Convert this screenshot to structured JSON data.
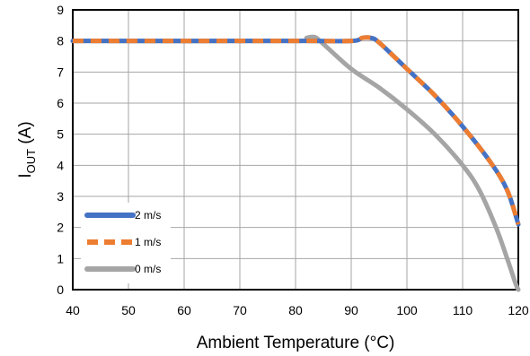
{
  "chart_data": {
    "type": "line",
    "xlabel": "Ambient Temperature (°C)",
    "ylabel_main": "I",
    "ylabel_sub": "OUT",
    "ylabel_suffix": " (A)",
    "xlim": [
      40,
      120
    ],
    "ylim": [
      0,
      9
    ],
    "xticks": [
      "40",
      "50",
      "60",
      "70",
      "80",
      "90",
      "100",
      "110",
      "120"
    ],
    "yticks": [
      "0",
      "1",
      "2",
      "3",
      "4",
      "5",
      "6",
      "7",
      "8",
      "9"
    ],
    "grid": true,
    "legend_position": "bottom-left",
    "series": [
      {
        "name": "2 m/s",
        "color": "#4472C4",
        "dash": "solid",
        "points": [
          [
            40,
            8
          ],
          [
            80,
            8
          ],
          [
            90,
            8
          ],
          [
            92,
            8.1
          ],
          [
            93.5,
            8.1
          ],
          [
            95,
            7.95
          ],
          [
            100,
            7.1
          ],
          [
            105,
            6.25
          ],
          [
            110,
            5.25
          ],
          [
            115,
            4.1
          ],
          [
            118,
            3.2
          ],
          [
            120,
            2.1
          ]
        ]
      },
      {
        "name": "1 m/s",
        "color": "#ED7D31",
        "dash": "dashed",
        "points": [
          [
            40,
            8
          ],
          [
            80,
            8
          ],
          [
            90,
            8
          ],
          [
            92,
            8.1
          ],
          [
            93.5,
            8.1
          ],
          [
            95,
            7.95
          ],
          [
            100,
            7.1
          ],
          [
            105,
            6.25
          ],
          [
            110,
            5.25
          ],
          [
            115,
            4.1
          ],
          [
            118,
            3.2
          ],
          [
            120,
            2.1
          ]
        ]
      },
      {
        "name": "0 m/s",
        "color": "#A5A5A5",
        "dash": "solid",
        "points": [
          [
            40,
            8
          ],
          [
            80,
            8
          ],
          [
            82,
            8.1
          ],
          [
            83.5,
            8.12
          ],
          [
            85,
            7.9
          ],
          [
            90,
            7.1
          ],
          [
            95,
            6.5
          ],
          [
            100,
            5.8
          ],
          [
            105,
            5.0
          ],
          [
            110,
            4.0
          ],
          [
            113,
            3.2
          ],
          [
            116,
            2.0
          ],
          [
            118,
            1.0
          ],
          [
            119.5,
            0.2
          ],
          [
            120,
            0
          ]
        ]
      }
    ]
  }
}
